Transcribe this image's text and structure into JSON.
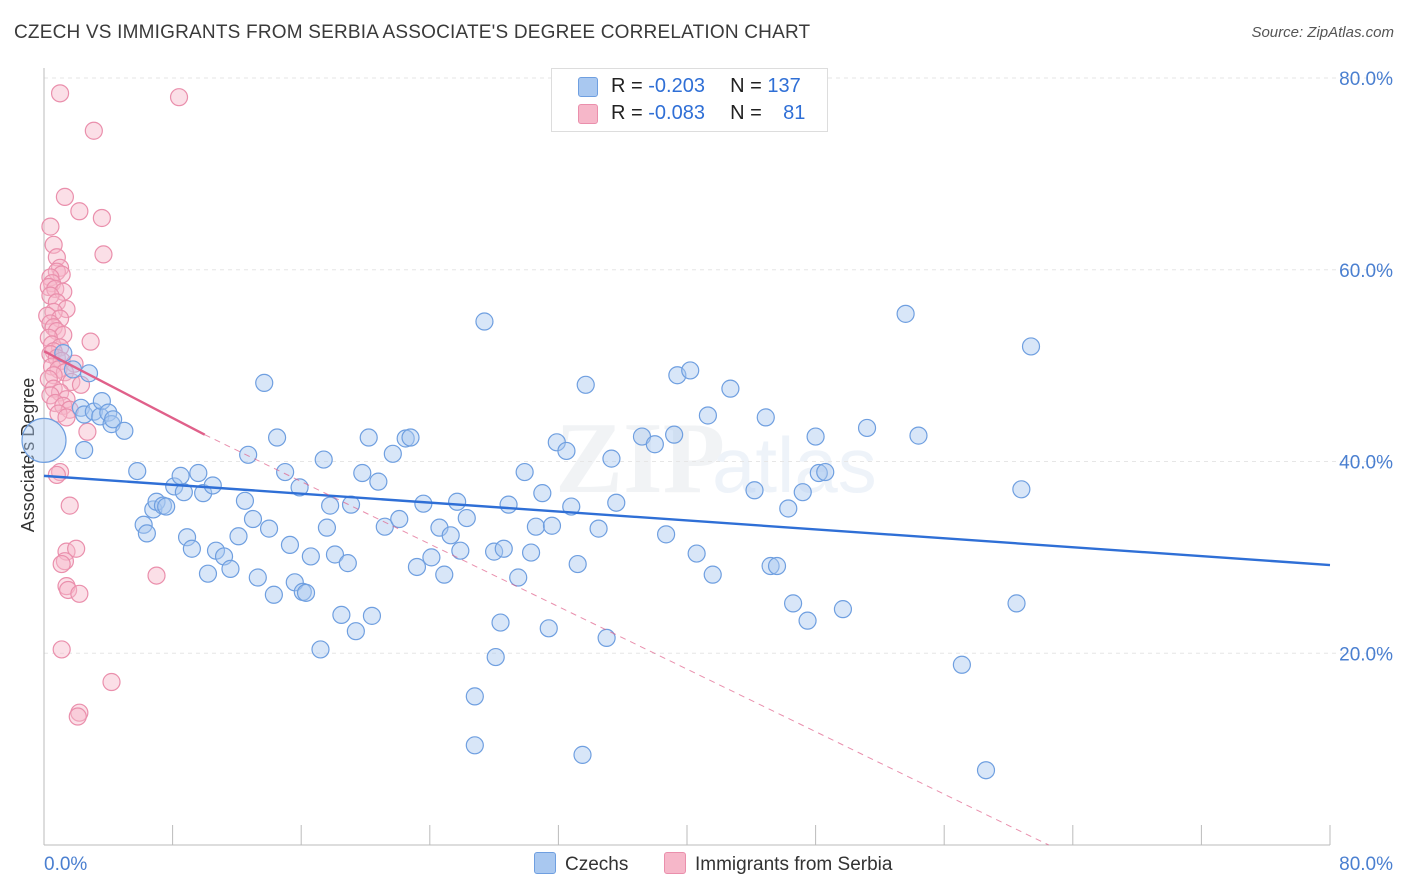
{
  "title": "CZECH VS IMMIGRANTS FROM SERBIA ASSOCIATE'S DEGREE CORRELATION CHART",
  "source": "Source: ZipAtlas.com",
  "legend": {
    "row1": {
      "r_label": "R = ",
      "r_value": "-0.203",
      "n_label": "N = ",
      "n_value": "137"
    },
    "row2": {
      "r_label": "R = ",
      "r_value": "-0.083",
      "n_label": "N = ",
      "n_value": "81"
    }
  },
  "bottom_legend": {
    "czechs": "Czechs",
    "serbia": "Immigrants from Serbia"
  },
  "colors": {
    "blue_fill": "#a9c8f0",
    "blue_stroke": "#6f9fe0",
    "blue_line": "#2f6fd6",
    "pink_fill": "#f6b7c9",
    "pink_stroke": "#ea8fac",
    "pink_line": "#e0608a",
    "tick_label": "#4a7fd0",
    "grid": "#e6e6e6"
  },
  "chart_data": {
    "type": "scatter",
    "title": "CZECH VS IMMIGRANTS FROM SERBIA ASSOCIATE'S DEGREE CORRELATION CHART",
    "xlabel": "",
    "ylabel": "Associate's Degree",
    "xlim": [
      0,
      80
    ],
    "ylim": [
      0,
      80
    ],
    "x_tick_labels": [
      "0.0%",
      "80.0%"
    ],
    "y_tick_labels": [
      "20.0%",
      "40.0%",
      "60.0%",
      "80.0%"
    ],
    "y_ticks": [
      20,
      40,
      60,
      80
    ],
    "grid": "horizontal dashed",
    "legend_position": "top-center",
    "series": [
      {
        "name": "Czechs",
        "R": -0.203,
        "N": 137,
        "trend": {
          "x": [
            0,
            80
          ],
          "y": [
            38.5,
            29.2
          ],
          "style": "solid"
        },
        "points": [
          [
            0.0,
            42.2
          ],
          [
            1.2,
            51.3
          ],
          [
            1.8,
            49.6
          ],
          [
            2.3,
            45.6
          ],
          [
            2.5,
            44.9
          ],
          [
            2.8,
            49.2
          ],
          [
            3.1,
            45.2
          ],
          [
            3.5,
            44.7
          ],
          [
            3.6,
            46.3
          ],
          [
            4.0,
            45.1
          ],
          [
            4.2,
            43.9
          ],
          [
            4.3,
            44.4
          ],
          [
            5.0,
            43.2
          ],
          [
            2.5,
            41.2
          ],
          [
            5.8,
            39.0
          ],
          [
            6.2,
            33.4
          ],
          [
            6.4,
            32.5
          ],
          [
            6.8,
            35.0
          ],
          [
            7.0,
            35.8
          ],
          [
            7.4,
            35.4
          ],
          [
            7.6,
            35.3
          ],
          [
            8.1,
            37.4
          ],
          [
            8.5,
            38.5
          ],
          [
            8.7,
            36.8
          ],
          [
            8.9,
            32.1
          ],
          [
            9.2,
            30.9
          ],
          [
            9.6,
            38.8
          ],
          [
            9.9,
            36.7
          ],
          [
            10.2,
            28.3
          ],
          [
            10.5,
            37.5
          ],
          [
            10.7,
            30.7
          ],
          [
            11.2,
            30.1
          ],
          [
            11.6,
            28.8
          ],
          [
            12.1,
            32.2
          ],
          [
            12.5,
            35.9
          ],
          [
            12.7,
            40.7
          ],
          [
            13.0,
            34.0
          ],
          [
            13.3,
            27.9
          ],
          [
            13.7,
            48.2
          ],
          [
            14.0,
            33.0
          ],
          [
            14.3,
            26.1
          ],
          [
            14.5,
            42.5
          ],
          [
            15.0,
            38.9
          ],
          [
            15.3,
            31.3
          ],
          [
            15.6,
            27.4
          ],
          [
            15.9,
            37.3
          ],
          [
            16.1,
            26.4
          ],
          [
            16.3,
            26.3
          ],
          [
            16.6,
            30.1
          ],
          [
            17.2,
            20.4
          ],
          [
            17.4,
            40.2
          ],
          [
            17.6,
            33.1
          ],
          [
            17.8,
            35.4
          ],
          [
            18.1,
            30.3
          ],
          [
            18.5,
            24.0
          ],
          [
            18.9,
            29.4
          ],
          [
            19.1,
            35.5
          ],
          [
            19.4,
            22.3
          ],
          [
            19.8,
            38.8
          ],
          [
            20.2,
            42.5
          ],
          [
            20.4,
            23.9
          ],
          [
            20.8,
            37.9
          ],
          [
            21.2,
            33.2
          ],
          [
            21.7,
            40.8
          ],
          [
            22.1,
            34.0
          ],
          [
            22.5,
            42.4
          ],
          [
            22.8,
            42.5
          ],
          [
            23.2,
            29.0
          ],
          [
            23.6,
            35.6
          ],
          [
            24.1,
            30.0
          ],
          [
            24.6,
            33.1
          ],
          [
            24.9,
            28.2
          ],
          [
            25.3,
            32.3
          ],
          [
            25.7,
            35.8
          ],
          [
            25.9,
            30.7
          ],
          [
            26.3,
            34.1
          ],
          [
            26.8,
            15.5
          ],
          [
            26.8,
            10.4
          ],
          [
            27.4,
            54.6
          ],
          [
            28.0,
            30.6
          ],
          [
            28.1,
            19.6
          ],
          [
            28.4,
            23.2
          ],
          [
            28.6,
            30.9
          ],
          [
            28.9,
            35.5
          ],
          [
            29.5,
            27.9
          ],
          [
            29.9,
            38.9
          ],
          [
            30.3,
            30.5
          ],
          [
            30.6,
            33.2
          ],
          [
            31.0,
            36.7
          ],
          [
            31.4,
            22.6
          ],
          [
            31.6,
            33.3
          ],
          [
            31.9,
            42.0
          ],
          [
            32.5,
            41.1
          ],
          [
            32.8,
            35.3
          ],
          [
            33.2,
            29.3
          ],
          [
            33.5,
            9.4
          ],
          [
            33.7,
            48.0
          ],
          [
            34.5,
            33.0
          ],
          [
            35.0,
            21.6
          ],
          [
            35.3,
            40.3
          ],
          [
            35.6,
            35.7
          ],
          [
            37.2,
            42.6
          ],
          [
            38.0,
            41.8
          ],
          [
            38.7,
            32.4
          ],
          [
            39.2,
            42.8
          ],
          [
            39.4,
            49.0
          ],
          [
            40.2,
            49.5
          ],
          [
            40.6,
            30.4
          ],
          [
            41.3,
            44.8
          ],
          [
            41.6,
            28.2
          ],
          [
            42.7,
            47.6
          ],
          [
            44.2,
            37.0
          ],
          [
            44.9,
            44.6
          ],
          [
            45.2,
            29.1
          ],
          [
            45.6,
            29.1
          ],
          [
            46.3,
            35.1
          ],
          [
            46.6,
            25.2
          ],
          [
            47.2,
            36.8
          ],
          [
            47.5,
            23.4
          ],
          [
            48.0,
            42.6
          ],
          [
            48.2,
            38.8
          ],
          [
            48.6,
            38.9
          ],
          [
            49.7,
            24.6
          ],
          [
            51.2,
            43.5
          ],
          [
            53.6,
            55.4
          ],
          [
            54.4,
            42.7
          ],
          [
            57.1,
            18.8
          ],
          [
            58.6,
            7.8
          ],
          [
            60.5,
            25.2
          ],
          [
            60.8,
            37.1
          ],
          [
            61.4,
            52.0
          ]
        ]
      },
      {
        "name": "Immigrants from Serbia",
        "R": -0.083,
        "N": 81,
        "trend": {
          "x": [
            0,
            10
          ],
          "y": [
            51.5,
            42.8
          ],
          "style": "solid",
          "extended": {
            "x": [
              10,
              62.5
            ],
            "y": [
              42.8,
              0
            ],
            "style": "dashed"
          }
        },
        "points": [
          [
            1.0,
            78.4
          ],
          [
            8.4,
            78.0
          ],
          [
            3.1,
            74.5
          ],
          [
            1.3,
            67.6
          ],
          [
            2.2,
            66.1
          ],
          [
            3.6,
            65.4
          ],
          [
            0.4,
            64.5
          ],
          [
            0.6,
            62.6
          ],
          [
            3.7,
            61.6
          ],
          [
            0.8,
            61.3
          ],
          [
            1.0,
            60.2
          ],
          [
            0.8,
            59.8
          ],
          [
            1.1,
            59.5
          ],
          [
            0.4,
            59.2
          ],
          [
            0.5,
            58.6
          ],
          [
            0.3,
            58.2
          ],
          [
            0.7,
            58.0
          ],
          [
            1.2,
            57.7
          ],
          [
            0.4,
            57.3
          ],
          [
            0.8,
            56.6
          ],
          [
            1.4,
            55.9
          ],
          [
            0.6,
            55.6
          ],
          [
            0.2,
            55.2
          ],
          [
            1.0,
            54.9
          ],
          [
            0.4,
            54.4
          ],
          [
            0.6,
            54.0
          ],
          [
            0.8,
            53.6
          ],
          [
            1.2,
            53.2
          ],
          [
            0.3,
            52.9
          ],
          [
            2.9,
            52.5
          ],
          [
            0.5,
            52.2
          ],
          [
            1.0,
            51.9
          ],
          [
            0.6,
            51.5
          ],
          [
            0.4,
            51.2
          ],
          [
            0.8,
            50.8
          ],
          [
            1.1,
            50.5
          ],
          [
            1.9,
            50.2
          ],
          [
            0.5,
            49.9
          ],
          [
            0.9,
            49.6
          ],
          [
            1.3,
            49.3
          ],
          [
            0.6,
            49.0
          ],
          [
            0.3,
            48.6
          ],
          [
            1.7,
            48.3
          ],
          [
            2.3,
            48.0
          ],
          [
            0.6,
            47.6
          ],
          [
            1.0,
            47.2
          ],
          [
            0.4,
            46.9
          ],
          [
            1.4,
            46.5
          ],
          [
            0.7,
            46.1
          ],
          [
            1.2,
            45.8
          ],
          [
            1.6,
            45.4
          ],
          [
            0.9,
            45.0
          ],
          [
            1.4,
            44.6
          ],
          [
            2.7,
            43.1
          ],
          [
            1.0,
            38.9
          ],
          [
            0.8,
            38.6
          ],
          [
            1.6,
            35.4
          ],
          [
            1.4,
            30.6
          ],
          [
            2.0,
            30.9
          ],
          [
            1.3,
            29.6
          ],
          [
            1.1,
            29.3
          ],
          [
            1.4,
            27.0
          ],
          [
            1.5,
            26.6
          ],
          [
            2.2,
            26.2
          ],
          [
            7.0,
            28.1
          ],
          [
            1.1,
            20.4
          ],
          [
            4.2,
            17.0
          ],
          [
            2.2,
            13.8
          ],
          [
            2.1,
            13.4
          ]
        ]
      }
    ]
  }
}
